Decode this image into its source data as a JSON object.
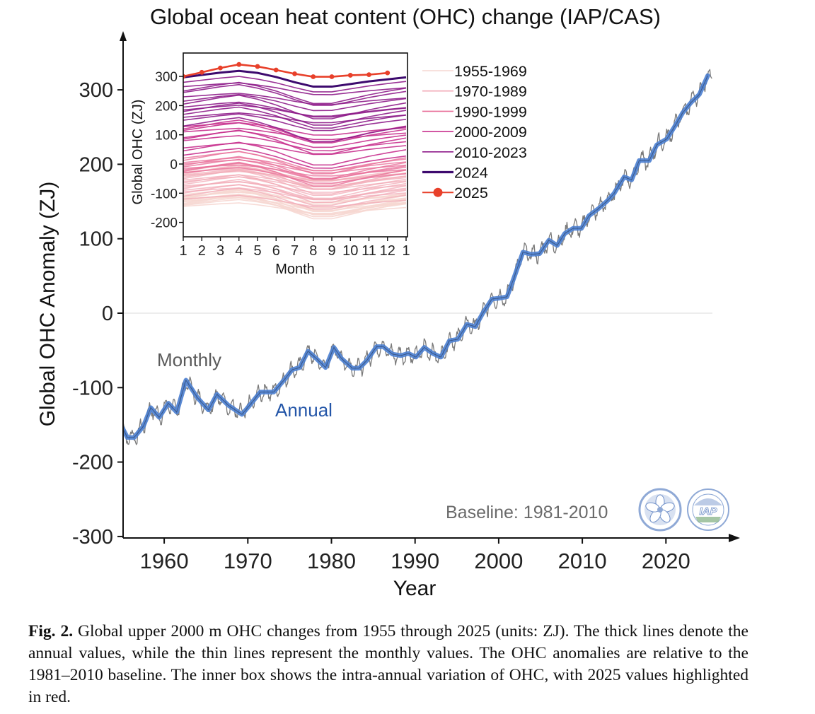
{
  "figure": {
    "caption_label": "Fig. 2.",
    "caption_text": " Global upper 2000 m OHC changes from 1955 through 2025 (units: ZJ). The thick lines denote the annual values, while the thin lines represent the monthly values. The OHC anomalies are relative to the 1981–2010 baseline. The inner box shows the intra-annual variation of OHC, with 2025 values highlighted in red."
  },
  "colors": {
    "annual": "#4a7ed0",
    "monthly": "#7a7a7a",
    "monthly_label": "#5a5a5a",
    "annual_label": "#2456a8",
    "baseline_text": "#6a6a6a",
    "zero_line": "#e2e2e2",
    "axis": "#111111",
    "logo": "#8fa9d6",
    "y2025": "#e8402a",
    "y2024": "#3d0a6e"
  },
  "chart_data": [
    {
      "type": "line",
      "title": "Global ocean heat content (OHC) change (IAP/CAS)",
      "xlabel": "Year",
      "ylabel": "Global OHC Anomaly (ZJ)",
      "xlim": [
        1955,
        2026
      ],
      "ylim": [
        -300,
        340
      ],
      "xticks": [
        1960,
        1970,
        1980,
        1990,
        2000,
        2010,
        2020
      ],
      "yticks": [
        -300,
        -200,
        -100,
        0,
        100,
        200,
        300
      ],
      "grid": false,
      "reference_line": 0,
      "annotations": {
        "monthly_label": "Monthly",
        "annual_label": "Annual",
        "baseline_label": "Baseline: 1981-2010"
      },
      "series": [
        {
          "name": "Annual",
          "x": [
            1955.0,
            1955.6,
            1956.4,
            1957.5,
            1958.4,
            1959.4,
            1960.5,
            1961.5,
            1962.6,
            1964.0,
            1965.3,
            1966.3,
            1967.7,
            1969.3,
            1970.2,
            1971.5,
            1973.1,
            1974.4,
            1975.3,
            1976.2,
            1977.2,
            1978.2,
            1979.3,
            1980.3,
            1981.2,
            1982.5,
            1983.3,
            1984.2,
            1985.4,
            1986.2,
            1987.3,
            1988.3,
            1989.2,
            1990.1,
            1991.1,
            1992.1,
            1993.1,
            1994.1,
            1995.1,
            1996.2,
            1997.2,
            1998.1,
            1999.2,
            2000.0,
            2001.0,
            2001.9,
            2002.9,
            2003.9,
            2004.9,
            2006.0,
            2007.0,
            2007.9,
            2008.9,
            2009.9,
            2010.8,
            2012.0,
            2013.1,
            2013.8,
            2015.0,
            2015.9,
            2016.8,
            2018.0,
            2018.9,
            2020.1,
            2021.0,
            2022.0,
            2023.0,
            2024.0,
            2025.0
          ],
          "values": [
            -154,
            -167,
            -167,
            -152,
            -127,
            -140,
            -121,
            -133,
            -90,
            -114,
            -130,
            -109,
            -124,
            -136,
            -124,
            -106,
            -106,
            -89,
            -76,
            -73,
            -51,
            -61,
            -73,
            -46,
            -61,
            -74,
            -74,
            -64,
            -45,
            -45,
            -55,
            -57,
            -54,
            -59,
            -46,
            -54,
            -59,
            -37,
            -35,
            -15,
            -18,
            0,
            19,
            20,
            22,
            50,
            82,
            79,
            80,
            98,
            91,
            107,
            114,
            114,
            131,
            141,
            152,
            161,
            183,
            179,
            205,
            205,
            226,
            234,
            250,
            269,
            283,
            294,
            319
          ]
        },
        {
          "name": "Monthly",
          "note": "thin grey line with intra-annual noise around the annual series; range approx -185 to 335 ZJ"
        }
      ]
    },
    {
      "type": "line",
      "title": "",
      "xlabel": "Month",
      "ylabel": "Global OHC (ZJ)",
      "xlim": [
        1,
        13
      ],
      "ylim": [
        -250,
        380
      ],
      "xticks": [
        "1",
        "2",
        "3",
        "4",
        "5",
        "6",
        "7",
        "8",
        "9",
        "10",
        "11",
        "12",
        "1"
      ],
      "yticks": [
        -200,
        -100,
        0,
        100,
        200,
        300
      ],
      "legend_position": "right",
      "legend": [
        {
          "label": "1955-1969",
          "color": "#f6d7d2"
        },
        {
          "label": "1970-1989",
          "color": "#f1a9b6"
        },
        {
          "label": "1990-1999",
          "color": "#e8709a"
        },
        {
          "label": "2000-2009",
          "color": "#c8318e"
        },
        {
          "label": "2010-2023",
          "color": "#8e1c8a"
        },
        {
          "label": "2024",
          "color": "#3d0a6e"
        },
        {
          "label": "2025",
          "color": "#e8402a",
          "marker": "circle"
        }
      ],
      "seasonal_shape": [
        0,
        8,
        16,
        22,
        12,
        -2,
        -20,
        -36,
        -36,
        -25,
        -14,
        -5,
        3
      ],
      "group_jan_values": {
        "1955-1969": [
          -145,
          -140,
          -135,
          -128,
          -122,
          -118,
          -115,
          -110,
          -125,
          -120,
          -105,
          -112,
          -130,
          -138,
          -142
        ],
        "1970-1989": [
          -120,
          -110,
          -100,
          -95,
          -90,
          -85,
          -80,
          -75,
          -70,
          -65,
          -60,
          -55,
          -50,
          -45,
          -40,
          -38,
          -35,
          -30,
          -28,
          -25
        ],
        "1990-1999": [
          -30,
          -25,
          -20,
          -15,
          -10,
          -5,
          0,
          5,
          12,
          20
        ],
        "2000-2009": [
          30,
          45,
          55,
          80,
          85,
          90,
          110,
          115,
          120,
          128
        ],
        "2010-2023": [
          130,
          150,
          160,
          170,
          180,
          185,
          195,
          205,
          215,
          230,
          245,
          250,
          265,
          280
        ]
      },
      "series": [
        {
          "name": "2024",
          "x": [
            1,
            2,
            3,
            4,
            5,
            6,
            7,
            8,
            9,
            10,
            11,
            12,
            13
          ],
          "values": [
            297,
            305,
            313,
            319,
            312,
            298,
            280,
            265,
            265,
            274,
            283,
            290,
            297
          ]
        },
        {
          "name": "2025",
          "x": [
            1,
            2,
            3,
            4,
            5,
            6,
            7,
            8,
            9,
            10,
            11,
            12
          ],
          "values": [
            300,
            314,
            329,
            341,
            334,
            322,
            309,
            299,
            299,
            304,
            306,
            312
          ]
        }
      ]
    }
  ]
}
